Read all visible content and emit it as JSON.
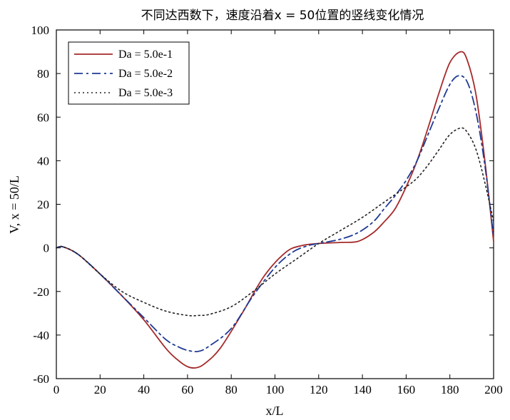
{
  "chart_data": {
    "type": "line",
    "title": "不同达西数下，速度沿着x = 50位置的竖线变化情况",
    "xlabel": "x/L",
    "ylabel": "V, x = 50/L",
    "xlim": [
      0,
      200
    ],
    "ylim": [
      -60,
      100
    ],
    "xticks": [
      0,
      20,
      40,
      60,
      80,
      100,
      120,
      140,
      160,
      180,
      200
    ],
    "yticks": [
      -60,
      -40,
      -20,
      0,
      20,
      40,
      60,
      80,
      100
    ],
    "grid": false,
    "legend_position": "top-left",
    "series": [
      {
        "name": "Da = 5.0e-1",
        "color": "#a52a2a",
        "style": "solid",
        "x": [
          0,
          3,
          10,
          20,
          30,
          40,
          50,
          55,
          60,
          64,
          68,
          75,
          85,
          95,
          105,
          112,
          120,
          130,
          138,
          145,
          150,
          155,
          160,
          165,
          170,
          175,
          180,
          185,
          188,
          192,
          196,
          200
        ],
        "y": [
          0,
          0.5,
          -3,
          -12,
          -22,
          -33,
          -46,
          -51,
          -54.5,
          -55,
          -53,
          -46,
          -30,
          -13,
          -2,
          1,
          2,
          2.5,
          3,
          7,
          12,
          18,
          28,
          40,
          55,
          71,
          85,
          90,
          86,
          70,
          40,
          3
        ]
      },
      {
        "name": "Da = 5.0e-2",
        "color": "#1f3a93",
        "style": "dashdot",
        "x": [
          0,
          3,
          10,
          20,
          30,
          40,
          50,
          56,
          60,
          65,
          70,
          80,
          90,
          100,
          108,
          115,
          120,
          130,
          138,
          145,
          150,
          155,
          160,
          165,
          170,
          175,
          180,
          184,
          188,
          192,
          196,
          200
        ],
        "y": [
          0,
          0.5,
          -3,
          -12,
          -22,
          -32,
          -42,
          -45.5,
          -47,
          -47.5,
          -45,
          -37,
          -22,
          -9,
          -2,
          1,
          2,
          4,
          7,
          12,
          18,
          24,
          31,
          40,
          52,
          64,
          75,
          79,
          76,
          62,
          38,
          5
        ]
      },
      {
        "name": "Da = 5.0e-3",
        "color": "#222222",
        "style": "dotted",
        "x": [
          0,
          3,
          10,
          20,
          30,
          40,
          50,
          60,
          65,
          70,
          80,
          90,
          100,
          110,
          120,
          130,
          140,
          150,
          160,
          165,
          170,
          175,
          180,
          185,
          188,
          192,
          196,
          200
        ],
        "y": [
          0,
          0.5,
          -3,
          -12,
          -20,
          -25,
          -29,
          -31,
          -31,
          -30.5,
          -27,
          -20,
          -12,
          -5,
          2,
          8,
          14,
          21,
          28,
          32,
          38,
          45,
          52,
          55,
          53,
          45,
          30,
          12
        ]
      }
    ]
  }
}
